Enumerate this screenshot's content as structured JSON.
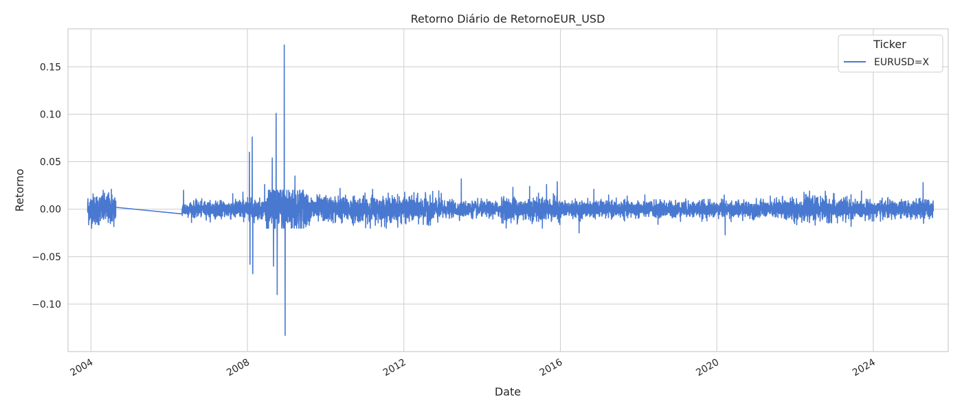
{
  "chart_data": {
    "type": "line",
    "title": "Retorno Diário de RetornoEUR_USD",
    "xlabel": "Date",
    "ylabel": "Retorno",
    "x_range": [
      "2003-06-01",
      "2025-12-01"
    ],
    "ylim": [
      -0.15,
      0.19
    ],
    "x_ticks": [
      "2004",
      "2008",
      "2012",
      "2016",
      "2020",
      "2024"
    ],
    "y_ticks": [
      "−0.10",
      "−0.05",
      "0.00",
      "0.05",
      "0.10",
      "0.15"
    ],
    "y_tick_values": [
      -0.1,
      -0.05,
      0,
      0.05,
      0.1,
      0.15
    ],
    "grid": true,
    "legend": {
      "title": "Ticker",
      "position": "top-right"
    },
    "series": [
      {
        "name": "EURUSD=X",
        "color": "#4878d0",
        "segments": [
          {
            "start": "2003-12-01",
            "end": "2004-08-20",
            "vol": 0.008
          },
          {
            "start": "2006-05-01",
            "end": "2007-06-30",
            "vol": 0.004
          },
          {
            "start": "2007-07-01",
            "end": "2008-06-30",
            "vol": 0.005
          },
          {
            "start": "2008-07-01",
            "end": "2009-06-30",
            "vol": 0.013
          },
          {
            "start": "2009-07-01",
            "end": "2012-12-31",
            "vol": 0.0065
          },
          {
            "start": "2013-01-01",
            "end": "2014-06-30",
            "vol": 0.004
          },
          {
            "start": "2014-07-01",
            "end": "2015-12-31",
            "vol": 0.006
          },
          {
            "start": "2016-01-01",
            "end": "2019-12-31",
            "vol": 0.0042
          },
          {
            "start": "2020-01-01",
            "end": "2021-06-30",
            "vol": 0.0042
          },
          {
            "start": "2021-07-01",
            "end": "2023-06-30",
            "vol": 0.006
          },
          {
            "start": "2023-07-01",
            "end": "2025-07-15",
            "vol": 0.0045
          }
        ],
        "gap": {
          "from": [
            "2004-08-20",
            0.002
          ],
          "to": [
            "2006-05-01",
            -0.005
          ]
        },
        "spikes": [
          [
            "2004-07-10",
            0.021
          ],
          [
            "2006-05-15",
            0.02
          ],
          [
            "2007-11-20",
            0.018
          ],
          [
            "2008-01-20",
            0.06
          ],
          [
            "2008-01-25",
            -0.058
          ],
          [
            "2008-02-15",
            0.076
          ],
          [
            "2008-02-20",
            -0.068
          ],
          [
            "2008-06-10",
            0.026
          ],
          [
            "2008-08-20",
            0.054
          ],
          [
            "2008-09-01",
            -0.06
          ],
          [
            "2008-09-25",
            0.101
          ],
          [
            "2008-10-05",
            -0.09
          ],
          [
            "2008-12-10",
            0.173
          ],
          [
            "2008-12-18",
            -0.133
          ],
          [
            "2009-03-20",
            0.035
          ],
          [
            "2010-05-15",
            0.022
          ],
          [
            "2011-03-15",
            0.021
          ],
          [
            "2013-06-20",
            0.032
          ],
          [
            "2014-10-15",
            0.023
          ],
          [
            "2015-03-20",
            0.024
          ],
          [
            "2015-08-25",
            0.026
          ],
          [
            "2015-12-03",
            0.029
          ],
          [
            "2016-06-24",
            -0.025
          ],
          [
            "2016-11-09",
            0.021
          ],
          [
            "2018-07-01",
            -0.016
          ],
          [
            "2020-03-10",
            0.015
          ],
          [
            "2020-03-19",
            -0.027
          ],
          [
            "2022-10-10",
            0.019
          ],
          [
            "2025-04-10",
            0.028
          ],
          [
            "2025-04-15",
            -0.015
          ]
        ]
      }
    ]
  }
}
